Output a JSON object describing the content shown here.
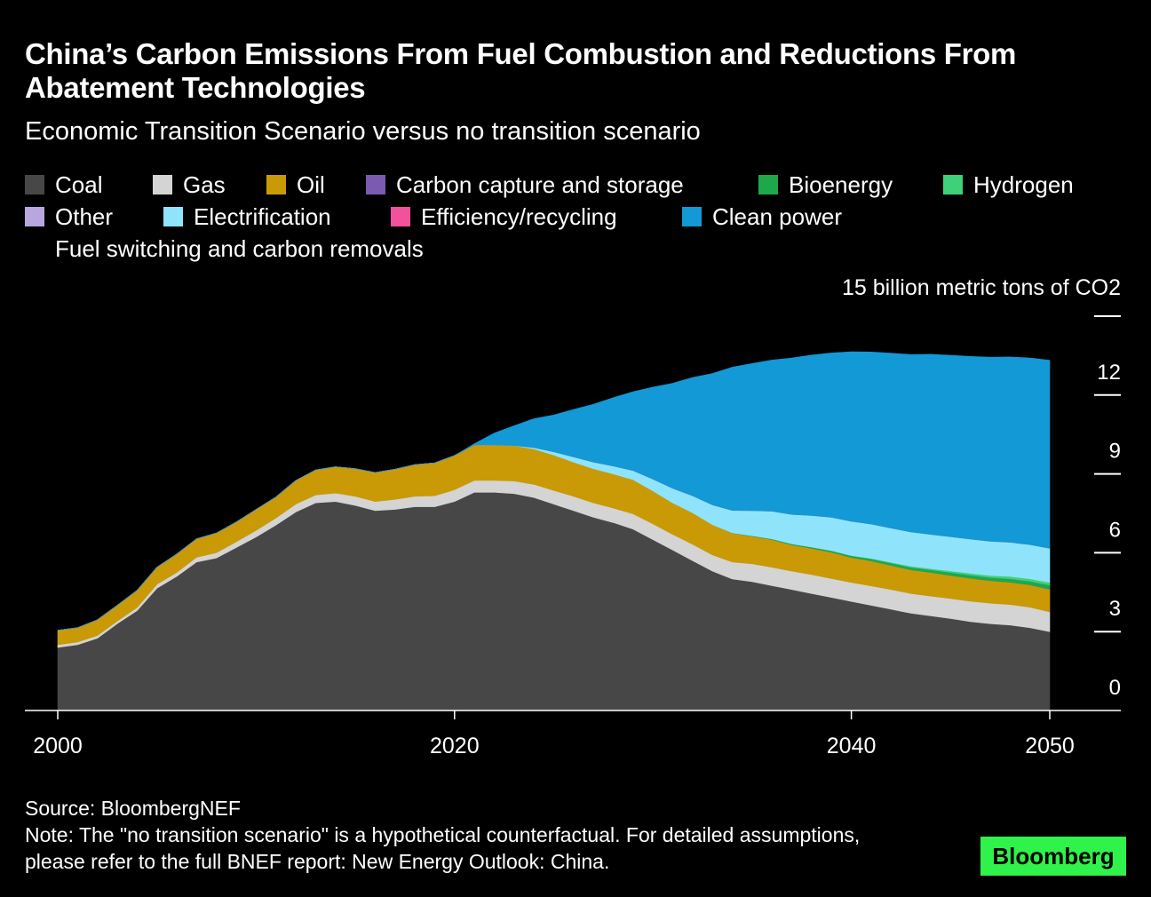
{
  "title": "China’s Carbon Emissions From Fuel Combustion and Reductions From Abatement Technologies",
  "subtitle": "Economic Transition Scenario versus no transition scenario",
  "legend": {
    "items": [
      {
        "label": "Coal",
        "color": "#474747"
      },
      {
        "label": "Gas",
        "color": "#d4d4d4"
      },
      {
        "label": "Oil",
        "color": "#c99a05"
      },
      {
        "label": "Carbon capture and storage",
        "color": "#7a5bb0"
      },
      {
        "label": "Bioenergy",
        "color": "#1fa84a"
      },
      {
        "label": "Hydrogen",
        "color": "#3fd17a"
      },
      {
        "label": "Other",
        "color": "#b8a6e0"
      },
      {
        "label": "Electrification",
        "color": "#8fe4fb"
      },
      {
        "label": "Efficiency/recycling",
        "color": "#f2529b"
      },
      {
        "label": "Clean power",
        "color": "#1299d6"
      }
    ],
    "group_label": "Fuel switching and carbon removals"
  },
  "unit_label": "15 billion metric tons of CO2",
  "source": "Source: BloombergNEF",
  "note": "Note: The \"no transition scenario\" is a hypothetical counterfactual. For detailed assumptions, please refer to the full BNEF report: New Energy Outlook: China.",
  "brand": "Bloomberg",
  "chart_data": {
    "type": "area",
    "stacked": true,
    "xlim": [
      2000,
      2050
    ],
    "ylim": [
      0,
      15
    ],
    "x_ticks": [
      "2000",
      "2020",
      "2040",
      "2050"
    ],
    "y_ticks": [
      "0",
      "3",
      "6",
      "9",
      "12"
    ],
    "x": [
      2000,
      2001,
      2002,
      2003,
      2004,
      2005,
      2006,
      2007,
      2008,
      2009,
      2010,
      2011,
      2012,
      2013,
      2014,
      2015,
      2016,
      2017,
      2018,
      2019,
      2020,
      2021,
      2022,
      2023,
      2024,
      2025,
      2026,
      2027,
      2028,
      2029,
      2030,
      2031,
      2032,
      2033,
      2034,
      2035,
      2036,
      2037,
      2038,
      2039,
      2040,
      2041,
      2042,
      2043,
      2044,
      2045,
      2046,
      2047,
      2048,
      2049,
      2050
    ],
    "series": [
      {
        "name": "Coal",
        "color": "#474747",
        "values": [
          2.4,
          2.5,
          2.75,
          3.3,
          3.8,
          4.65,
          5.1,
          5.65,
          5.8,
          6.2,
          6.6,
          7.05,
          7.55,
          7.9,
          7.95,
          7.8,
          7.6,
          7.65,
          7.75,
          7.75,
          7.95,
          8.3,
          8.3,
          8.25,
          8.1,
          7.85,
          7.6,
          7.35,
          7.15,
          6.9,
          6.5,
          6.1,
          5.7,
          5.3,
          5.0,
          4.9,
          4.75,
          4.6,
          4.45,
          4.3,
          4.15,
          4.0,
          3.85,
          3.7,
          3.6,
          3.5,
          3.38,
          3.3,
          3.25,
          3.15,
          3.0
        ]
      },
      {
        "name": "Gas",
        "color": "#d4d4d4",
        "values": [
          0.1,
          0.1,
          0.1,
          0.1,
          0.12,
          0.15,
          0.15,
          0.18,
          0.2,
          0.22,
          0.25,
          0.27,
          0.3,
          0.3,
          0.32,
          0.35,
          0.35,
          0.38,
          0.4,
          0.42,
          0.45,
          0.45,
          0.45,
          0.48,
          0.5,
          0.52,
          0.55,
          0.55,
          0.55,
          0.58,
          0.6,
          0.6,
          0.62,
          0.62,
          0.65,
          0.68,
          0.7,
          0.7,
          0.72,
          0.72,
          0.72,
          0.74,
          0.75,
          0.75,
          0.75,
          0.76,
          0.78,
          0.78,
          0.78,
          0.78,
          0.75
        ]
      },
      {
        "name": "Oil",
        "color": "#c99a05",
        "values": [
          0.55,
          0.55,
          0.6,
          0.6,
          0.65,
          0.65,
          0.7,
          0.7,
          0.75,
          0.75,
          0.8,
          0.8,
          0.9,
          0.95,
          1.0,
          1.05,
          1.1,
          1.15,
          1.2,
          1.25,
          1.3,
          1.35,
          1.35,
          1.35,
          1.35,
          1.35,
          1.3,
          1.3,
          1.3,
          1.3,
          1.25,
          1.2,
          1.2,
          1.15,
          1.1,
          1.05,
          1.05,
          1.0,
          1.0,
          1.0,
          0.95,
          0.95,
          0.92,
          0.9,
          0.9,
          0.88,
          0.87,
          0.86,
          0.85,
          0.85,
          0.85
        ]
      },
      {
        "name": "Carbon capture and storage",
        "color": "#7a5bb0",
        "values": [
          0,
          0,
          0,
          0,
          0,
          0,
          0,
          0,
          0,
          0,
          0,
          0,
          0,
          0,
          0,
          0,
          0,
          0,
          0,
          0,
          0,
          0,
          0,
          0,
          0,
          0,
          0,
          0,
          0,
          0,
          0,
          0,
          0,
          0,
          0,
          0,
          0,
          0,
          0,
          0,
          0,
          0,
          0,
          0,
          0,
          0,
          0,
          0,
          0,
          0,
          0.02
        ]
      },
      {
        "name": "Bioenergy",
        "color": "#1fa84a",
        "values": [
          0,
          0,
          0,
          0,
          0,
          0,
          0,
          0,
          0,
          0,
          0,
          0,
          0,
          0,
          0,
          0,
          0,
          0,
          0,
          0,
          0,
          0,
          0,
          0,
          0,
          0,
          0,
          0,
          0,
          0,
          0,
          0,
          0,
          0,
          0.01,
          0.02,
          0.03,
          0.04,
          0.05,
          0.06,
          0.07,
          0.08,
          0.09,
          0.1,
          0.1,
          0.11,
          0.12,
          0.12,
          0.13,
          0.14,
          0.15
        ]
      },
      {
        "name": "Hydrogen",
        "color": "#3fd17a",
        "values": [
          0,
          0,
          0,
          0,
          0,
          0,
          0,
          0,
          0,
          0,
          0,
          0,
          0,
          0,
          0,
          0,
          0,
          0,
          0,
          0,
          0,
          0,
          0,
          0,
          0,
          0,
          0,
          0,
          0,
          0,
          0,
          0,
          0,
          0,
          0,
          0,
          0,
          0,
          0,
          0,
          0.01,
          0.02,
          0.03,
          0.04,
          0.05,
          0.06,
          0.07,
          0.08,
          0.09,
          0.09,
          0.1
        ]
      },
      {
        "name": "Other",
        "color": "#b8a6e0",
        "values": [
          0,
          0,
          0,
          0,
          0,
          0,
          0,
          0,
          0,
          0,
          0,
          0,
          0,
          0,
          0,
          0,
          0,
          0,
          0,
          0,
          0,
          0,
          0,
          0,
          0,
          0,
          0,
          0,
          0,
          0,
          0,
          0,
          0,
          0,
          0,
          0,
          0,
          0,
          0,
          0,
          0,
          0,
          0,
          0,
          0,
          0,
          0,
          0,
          0,
          0,
          0
        ]
      },
      {
        "name": "Electrification",
        "color": "#8fe4fb",
        "values": [
          0,
          0,
          0,
          0,
          0,
          0,
          0,
          0,
          0,
          0,
          0,
          0,
          0,
          0,
          0,
          0,
          0,
          0,
          0,
          0,
          0,
          0,
          0,
          0,
          0.05,
          0.12,
          0.2,
          0.25,
          0.3,
          0.35,
          0.45,
          0.55,
          0.65,
          0.75,
          0.85,
          0.95,
          1.05,
          1.12,
          1.2,
          1.27,
          1.3,
          1.3,
          1.3,
          1.3,
          1.3,
          1.3,
          1.3,
          1.3,
          1.3,
          1.3,
          1.3
        ]
      },
      {
        "name": "Efficiency/recycling",
        "color": "#f2529b",
        "values": [
          0,
          0,
          0,
          0,
          0,
          0,
          0,
          0,
          0,
          0,
          0,
          0,
          0,
          0,
          0,
          0,
          0,
          0,
          0,
          0,
          0,
          0,
          0,
          0,
          0,
          0,
          0,
          0,
          0,
          0,
          0,
          0,
          0,
          0,
          0,
          0,
          0,
          0,
          0,
          0,
          0,
          0,
          0,
          0,
          0,
          0,
          0,
          0,
          0,
          0,
          0
        ]
      },
      {
        "name": "Clean power",
        "color": "#1299d6",
        "values": [
          0,
          0,
          0,
          0,
          0,
          0,
          0,
          0,
          0,
          0,
          0,
          0,
          0,
          0,
          0,
          0,
          0,
          0,
          0,
          0,
          0,
          0.05,
          0.45,
          0.75,
          1.1,
          1.4,
          1.8,
          2.2,
          2.6,
          3.0,
          3.5,
          4.0,
          4.5,
          5.0,
          5.45,
          5.6,
          5.75,
          5.95,
          6.1,
          6.25,
          6.45,
          6.55,
          6.65,
          6.75,
          6.85,
          6.9,
          6.95,
          7.0,
          7.05,
          7.1,
          7.15
        ]
      }
    ]
  }
}
